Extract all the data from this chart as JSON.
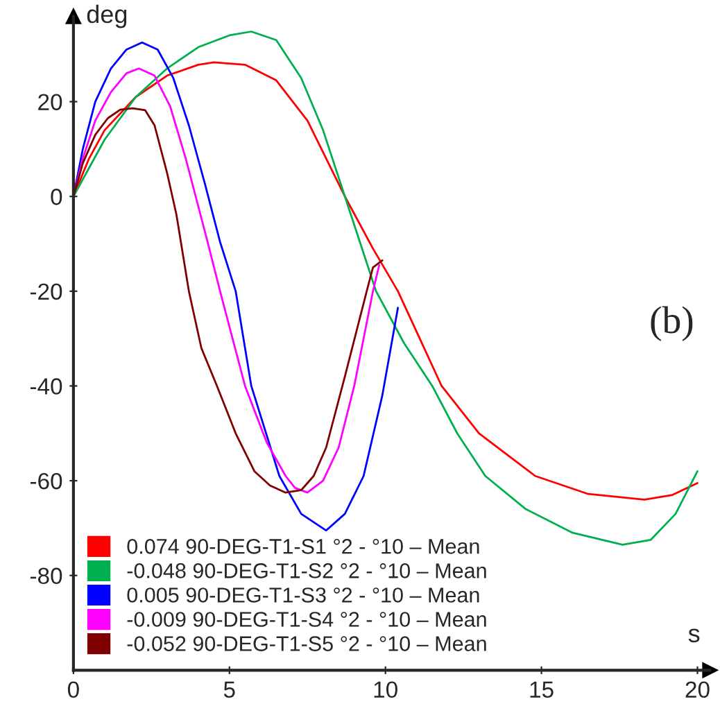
{
  "chart_data": {
    "type": "line",
    "xlabel": "s",
    "ylabel": "deg",
    "xlim": [
      0,
      20.4
    ],
    "ylim": [
      -100,
      38
    ],
    "xticks": [
      0,
      5,
      10,
      15,
      20
    ],
    "yticks": [
      -80,
      -60,
      -40,
      -20,
      0,
      20
    ],
    "grid": false,
    "legend": "bottom left",
    "marker": "none",
    "line_style": "solid",
    "annotations": [
      "(b)"
    ],
    "series": [
      {
        "name": "0.074 90-DEG-T1-S1 °2 - °10 – Mean",
        "color": "#ff0000",
        "x": [
          0,
          0.5,
          1,
          2,
          3,
          4,
          4.5,
          5.5,
          6.5,
          7.5,
          8.7,
          9.6,
          10.4,
          11.1,
          11.8,
          13,
          14.8,
          16.5,
          18.3,
          19.2,
          20
        ],
        "values": [
          0,
          8,
          14,
          21,
          25.5,
          27.8,
          28.3,
          27.8,
          24.5,
          16,
          0,
          -11,
          -20,
          -30,
          -40,
          -50,
          -59,
          -62.8,
          -64,
          -63,
          -60.5
        ]
      },
      {
        "name": "-0.048 90-DEG-T1-S2 °2 - °10 – Mean",
        "color": "#00b050",
        "x": [
          0,
          0.5,
          1,
          2,
          3,
          4,
          5,
          5.7,
          6.5,
          7.3,
          8,
          8.7,
          9.7,
          10.6,
          11.5,
          12.3,
          13.2,
          14.5,
          16,
          17.6,
          18.5,
          19.3,
          20
        ],
        "values": [
          0,
          6,
          12,
          21,
          27,
          31.5,
          34,
          34.8,
          33,
          25,
          14,
          0,
          -20,
          -31,
          -40,
          -50,
          -59,
          -66,
          -71,
          -73.5,
          -72.5,
          -67,
          -58
        ]
      },
      {
        "name": "0.005 90-DEG-T1-S3 °2 - °10 – Mean",
        "color": "#0000ff",
        "x": [
          0,
          0.3,
          0.7,
          1.2,
          1.7,
          2.2,
          2.7,
          3.2,
          3.7,
          4.2,
          4.7,
          5.2,
          5.7,
          6.6,
          7.3,
          8.1,
          8.7,
          9.3,
          9.9,
          10.4
        ],
        "values": [
          0,
          10,
          20,
          27,
          31,
          32.5,
          31,
          25,
          15,
          3,
          -9.6,
          -20,
          -40,
          -59,
          -67,
          -70.5,
          -67,
          -59,
          -42,
          -23.5
        ]
      },
      {
        "name": "-0.009 90-DEG-T1-S4 °2 - °10 – Mean",
        "color": "#ff00ff",
        "x": [
          0,
          0.3,
          0.7,
          1.2,
          1.7,
          2.1,
          2.6,
          3.1,
          3.6,
          4.3,
          4.7,
          5.5,
          6.2,
          6.8,
          7.1,
          7.5,
          8,
          8.5,
          9,
          9.6,
          9.8
        ],
        "values": [
          0,
          8,
          16,
          22,
          26,
          27,
          25.5,
          19,
          8,
          -9.6,
          -20,
          -40,
          -52,
          -59,
          -61.5,
          -62.5,
          -60,
          -53,
          -40,
          -20,
          -14.5
        ]
      },
      {
        "name": "-0.052 90-DEG-T1-S5 °2 - °10 – Mean",
        "color": "#7f0000",
        "x": [
          0,
          0.3,
          0.7,
          1.1,
          1.5,
          1.9,
          2.3,
          2.6,
          3,
          3.3,
          3.7,
          4.1,
          4.6,
          5.2,
          5.8,
          6.3,
          6.8,
          7.3,
          7.7,
          8.1,
          8.7,
          9.4,
          9.6,
          9.9
        ],
        "values": [
          0,
          7,
          13,
          16.5,
          18.3,
          18.6,
          18.2,
          15,
          5,
          -3.8,
          -20,
          -32,
          -40,
          -50,
          -58,
          -61,
          -62.5,
          -62,
          -59,
          -53,
          -38,
          -20,
          -15,
          -13.5
        ]
      }
    ]
  }
}
